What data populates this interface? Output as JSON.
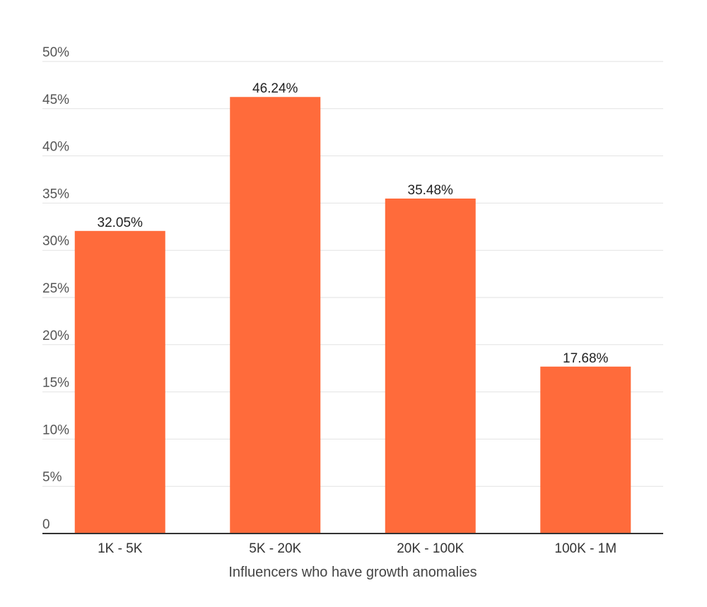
{
  "chart_data": {
    "type": "bar",
    "categories": [
      "1K - 5K",
      "5K - 20K",
      "20K - 100K",
      "100K - 1M"
    ],
    "values": [
      32.05,
      46.24,
      35.48,
      17.68
    ],
    "data_labels": [
      "32.05%",
      "46.24%",
      "35.48%",
      "17.68%"
    ],
    "xlabel": "Influencers who have growth anomalies",
    "ylabel": "",
    "ylim": [
      0,
      50
    ],
    "yticks": [
      0,
      5,
      10,
      15,
      20,
      25,
      30,
      35,
      40,
      45,
      50
    ],
    "ytick_labels": [
      "0",
      "5%",
      "10%",
      "15%",
      "20%",
      "25%",
      "30%",
      "35%",
      "40%",
      "45%",
      "50%"
    ],
    "grid": true,
    "legend": "none",
    "bar_color": "#ff6b3b"
  }
}
